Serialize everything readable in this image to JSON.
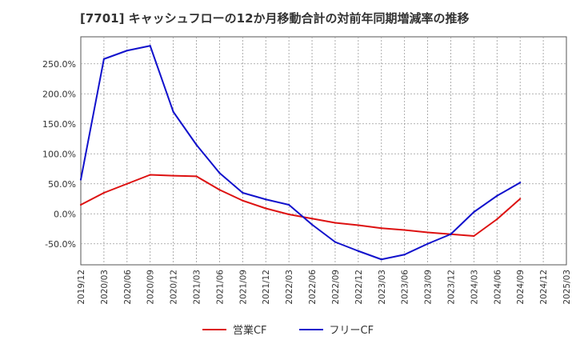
{
  "chart_data": {
    "type": "line",
    "title": "[7701]  キャッシュフローの12か月移動合計の対前年同期増減率の推移",
    "xlabel": "",
    "ylabel": "",
    "ylim": [
      -85,
      295
    ],
    "yticks": [
      250,
      200,
      150,
      100,
      50,
      0,
      -50
    ],
    "ytick_labels": [
      "250.0%",
      "200.0%",
      "150.0%",
      "100.0%",
      "50.0%",
      "0.0%",
      "-50.0%"
    ],
    "categories": [
      "2019/12",
      "2020/03",
      "2020/06",
      "2020/09",
      "2020/12",
      "2021/03",
      "2021/06",
      "2021/09",
      "2021/12",
      "2022/03",
      "2022/06",
      "2022/09",
      "2022/12",
      "2023/03",
      "2023/06",
      "2023/09",
      "2023/12",
      "2024/03",
      "2024/06",
      "2024/09",
      "2024/12",
      "2025/03"
    ],
    "series": [
      {
        "name": "営業CF",
        "color": "#dd1111",
        "values": [
          15,
          35,
          50,
          65,
          63.5,
          62.5,
          40,
          22,
          9,
          -1,
          -8,
          -15,
          -19,
          -24,
          -27,
          -31,
          -34,
          -37,
          -9,
          25,
          null,
          null
        ]
      },
      {
        "name": "フリーCF",
        "color": "#1111cc",
        "values": [
          57,
          258,
          272,
          280,
          170,
          115,
          68,
          35,
          24,
          15,
          -18,
          -47,
          -62,
          -76,
          -68,
          -50,
          -34,
          3,
          30,
          52,
          null,
          null
        ]
      }
    ],
    "grid": true,
    "legend": "bottom-center"
  }
}
